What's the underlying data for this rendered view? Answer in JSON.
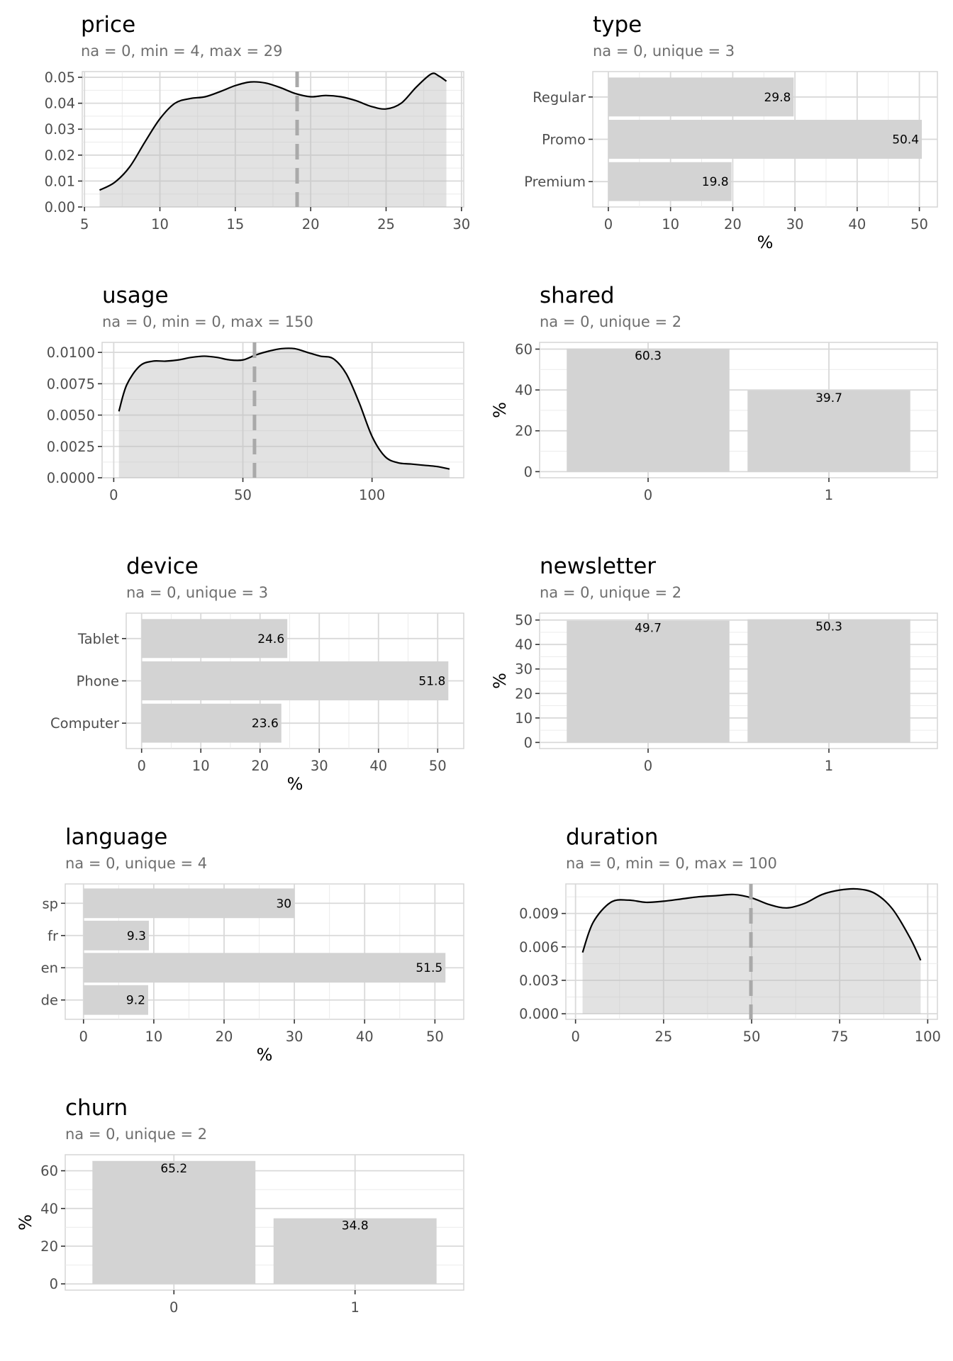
{
  "chart_data": [
    {
      "type": "area",
      "title": "price",
      "subtitle": "na = 0, min = 4, max = 29",
      "xlabel": "",
      "ylabel": "",
      "xlim": [
        4.85,
        30.15
      ],
      "ylim": [
        0,
        0.0522
      ],
      "xticks": [
        5,
        10,
        15,
        20,
        25,
        30
      ],
      "yticks": [
        0,
        0.01,
        0.02,
        0.03,
        0.04,
        0.05
      ],
      "ytick_labels": [
        "0.00",
        "0.01",
        "0.02",
        "0.03",
        "0.04",
        "0.05"
      ],
      "mean_line": 19.1,
      "x": [
        6,
        7,
        8,
        9,
        10,
        11,
        12,
        13,
        14,
        15,
        16,
        17,
        18,
        19,
        20,
        21,
        22,
        23,
        24,
        25,
        26,
        27,
        28,
        28.5,
        29
      ],
      "y": [
        0.0065,
        0.0095,
        0.0155,
        0.025,
        0.034,
        0.04,
        0.0418,
        0.0425,
        0.0445,
        0.0468,
        0.0482,
        0.0478,
        0.046,
        0.0437,
        0.0425,
        0.043,
        0.0425,
        0.041,
        0.0388,
        0.0378,
        0.04,
        0.0462,
        0.0513,
        0.0505,
        0.0485
      ],
      "grid": true
    },
    {
      "type": "bar",
      "orientation": "horizontal",
      "title": "type",
      "subtitle": "na = 0, unique = 3",
      "xlabel": "%",
      "ylabel": "",
      "categories": [
        "Premium",
        "Promo",
        "Regular"
      ],
      "values": [
        19.8,
        50.4,
        29.8
      ],
      "value_labels": [
        "19.8",
        "50.4",
        "29.8"
      ],
      "xlim": [
        -2.5,
        52.9
      ],
      "xticks": [
        0,
        10,
        20,
        30,
        40,
        50
      ],
      "grid": true
    },
    {
      "type": "area",
      "title": "usage",
      "subtitle": "na = 0, min = 0, max = 150",
      "xlabel": "",
      "ylabel": "",
      "xlim": [
        -4.5,
        135.5
      ],
      "ylim": [
        0,
        0.0108
      ],
      "xticks": [
        0,
        50,
        100
      ],
      "yticks": [
        0,
        0.0025,
        0.005,
        0.0075,
        0.01
      ],
      "ytick_labels": [
        "0.0000",
        "0.0025",
        "0.0050",
        "0.0075",
        "0.0100"
      ],
      "mean_line": 54.5,
      "x": [
        2,
        5,
        10,
        15,
        20,
        25,
        30,
        35,
        40,
        45,
        50,
        55,
        60,
        65,
        70,
        75,
        80,
        85,
        90,
        95,
        100,
        105,
        110,
        115,
        120,
        125,
        130
      ],
      "y": [
        0.0053,
        0.0074,
        0.0089,
        0.0093,
        0.0093,
        0.0094,
        0.0096,
        0.0097,
        0.0096,
        0.0094,
        0.0094,
        0.0098,
        0.0101,
        0.0103,
        0.0103,
        0.01,
        0.0097,
        0.0095,
        0.0083,
        0.006,
        0.0033,
        0.0017,
        0.0012,
        0.0011,
        0.001,
        0.0009,
        0.0007
      ],
      "grid": true
    },
    {
      "type": "bar",
      "title": "shared",
      "subtitle": "na = 0, unique = 2",
      "xlabel": "",
      "ylabel": "%",
      "categories": [
        "0",
        "1"
      ],
      "values": [
        60.3,
        39.7
      ],
      "value_labels": [
        "60.3",
        "39.7"
      ],
      "ylim": [
        -3,
        63.3
      ],
      "yticks": [
        0,
        20,
        40,
        60
      ],
      "grid": true
    },
    {
      "type": "bar",
      "orientation": "horizontal",
      "title": "device",
      "subtitle": "na = 0, unique = 3",
      "xlabel": "%",
      "ylabel": "",
      "categories": [
        "Computer",
        "Phone",
        "Tablet"
      ],
      "values": [
        23.6,
        51.8,
        24.6
      ],
      "value_labels": [
        "23.6",
        "51.8",
        "24.6"
      ],
      "xlim": [
        -2.6,
        54.4
      ],
      "xticks": [
        0,
        10,
        20,
        30,
        40,
        50
      ],
      "grid": true
    },
    {
      "type": "bar",
      "title": "newsletter",
      "subtitle": "na = 0, unique = 2",
      "xlabel": "",
      "ylabel": "%",
      "categories": [
        "0",
        "1"
      ],
      "values": [
        49.7,
        50.3
      ],
      "value_labels": [
        "49.7",
        "50.3"
      ],
      "ylim": [
        -2.5,
        52.8
      ],
      "yticks": [
        0,
        10,
        20,
        30,
        40,
        50
      ],
      "grid": true
    },
    {
      "type": "bar",
      "orientation": "horizontal",
      "title": "language",
      "subtitle": "na = 0, unique = 4",
      "xlabel": "%",
      "ylabel": "",
      "categories": [
        "de",
        "en",
        "fr",
        "sp"
      ],
      "values": [
        9.2,
        51.5,
        9.3,
        30
      ],
      "value_labels": [
        "9.2",
        "51.5",
        "9.3",
        "30"
      ],
      "xlim": [
        -2.6,
        54.1
      ],
      "xticks": [
        0,
        10,
        20,
        30,
        40,
        50
      ],
      "grid": true
    },
    {
      "type": "area",
      "title": "duration",
      "subtitle": "na = 0, min = 0, max = 100",
      "xlabel": "",
      "ylabel": "",
      "xlim": [
        -2.75,
        102.75
      ],
      "ylim": [
        -0.0005,
        0.01165
      ],
      "xticks": [
        0,
        25,
        50,
        75,
        100
      ],
      "yticks": [
        0,
        0.003,
        0.006,
        0.009
      ],
      "ytick_labels": [
        "0.000",
        "0.003",
        "0.006",
        "0.009"
      ],
      "mean_line": 49.8,
      "x": [
        2,
        5,
        10,
        15,
        20,
        25,
        30,
        35,
        40,
        45,
        50,
        55,
        60,
        65,
        70,
        75,
        80,
        85,
        90,
        95,
        98
      ],
      "y": [
        0.0055,
        0.0082,
        0.01,
        0.0102,
        0.01,
        0.0101,
        0.0103,
        0.0105,
        0.0106,
        0.0107,
        0.0104,
        0.0098,
        0.0095,
        0.0099,
        0.0107,
        0.0111,
        0.0112,
        0.0108,
        0.0094,
        0.0068,
        0.0048
      ],
      "grid": true
    },
    {
      "type": "bar",
      "title": "churn",
      "subtitle": "na = 0, unique = 2",
      "xlabel": "",
      "ylabel": "%",
      "categories": [
        "0",
        "1"
      ],
      "values": [
        65.2,
        34.8
      ],
      "value_labels": [
        "65.2",
        "34.8"
      ],
      "ylim": [
        -3.3,
        68.5
      ],
      "yticks": [
        0,
        20,
        40,
        60
      ],
      "grid": true
    }
  ]
}
